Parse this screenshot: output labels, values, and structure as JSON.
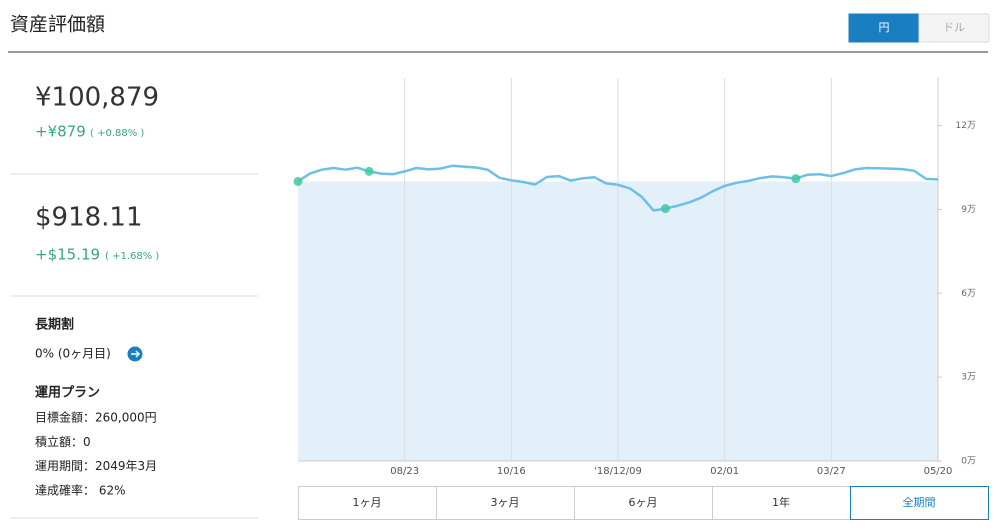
{
  "header": {
    "title": "資産評価額",
    "currency_toggle": [
      "円",
      "ドル"
    ],
    "selected_currency": 0
  },
  "summary": {
    "jpy": {
      "value": "¥100,879",
      "change": "+¥879",
      "change_pct": "( +0.88% )"
    },
    "usd": {
      "value": "$918.11",
      "change": "+$15.19",
      "change_pct": "( +1.68% )"
    }
  },
  "long_term": {
    "title": "長期割",
    "value": "0% (0ヶ月目)"
  },
  "plan": {
    "title": "運用プラン",
    "items": [
      "目標金額：260,000円",
      "積立額：0",
      "運用期間：2049年3月",
      "達成確率： 62%"
    ]
  },
  "chart_data": {
    "type": "line",
    "categories": [
      null,
      null,
      null,
      null,
      null,
      null,
      null,
      null,
      null,
      "08/23",
      null,
      null,
      null,
      null,
      null,
      null,
      null,
      null,
      "10/16",
      null,
      null,
      null,
      null,
      null,
      null,
      null,
      null,
      "'18/12/09",
      null,
      null,
      null,
      null,
      null,
      null,
      null,
      null,
      "02/01",
      null,
      null,
      null,
      null,
      null,
      null,
      null,
      null,
      "03/27",
      null,
      null,
      null,
      null,
      null,
      null,
      null,
      null,
      "05/20"
    ],
    "series": [
      {
        "color": "#6cc0e8",
        "values": [
          100000,
          102800,
          104200,
          104800,
          104200,
          104900,
          103600,
          102800,
          102600,
          103600,
          104800,
          104300,
          104600,
          105600,
          105300,
          105000,
          104200,
          101300,
          100400,
          99800,
          98900,
          101600,
          101900,
          100300,
          101100,
          101500,
          99300,
          98800,
          97500,
          94500,
          89600,
          90300,
          91300,
          92500,
          94200,
          96500,
          98400,
          99500,
          100200,
          101200,
          101800,
          101500,
          101000,
          102400,
          102600,
          101900,
          103000,
          104300,
          104800,
          104700,
          104600,
          104400,
          103800,
          100900,
          100700
        ]
      }
    ],
    "reference_value": 100000,
    "area_color": "#e3f0f9",
    "marker_indices": [
      0,
      6,
      31,
      42
    ],
    "marker_color": "#3ec9a0",
    "ylim": [
      0,
      137000
    ],
    "yticks": [
      {
        "value": 0,
        "label": "0万"
      },
      {
        "value": 30000,
        "label": "3万"
      },
      {
        "value": 60000,
        "label": "6万"
      },
      {
        "value": 90000,
        "label": "9万"
      },
      {
        "value": 120000,
        "label": "12万"
      }
    ],
    "grid": true
  },
  "range_buttons": [
    "1ヶ月",
    "3ヶ月",
    "6ヶ月",
    "1年",
    "全期間"
  ],
  "selected_range": 4
}
